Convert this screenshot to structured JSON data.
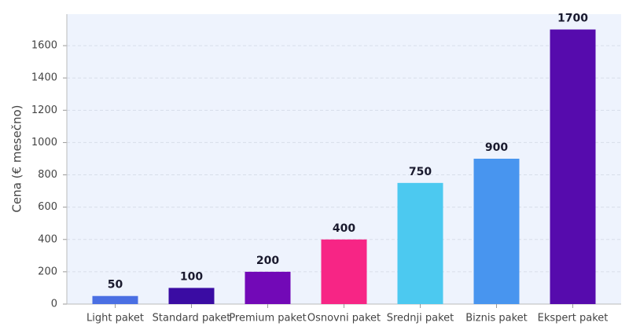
{
  "chart_data": {
    "type": "bar",
    "y_label": "Cena (€ mesečno)",
    "categories": [
      "Light paket",
      "Standard paket",
      "Premium paket",
      "Osnovni paket",
      "Srednji paket",
      "Biznis paket",
      "Ekspert paket"
    ],
    "values": [
      50,
      100,
      200,
      400,
      750,
      900,
      1700
    ],
    "colors": [
      "#4a6fe3",
      "#3a0ca3",
      "#7209b7",
      "#f72585",
      "#4cc9f0",
      "#4895ef",
      "#560bad"
    ],
    "ylim": [
      0,
      1795
    ],
    "yticks": [
      0,
      200,
      400,
      600,
      800,
      1000,
      1200,
      1400,
      1600
    ],
    "grid": true
  }
}
